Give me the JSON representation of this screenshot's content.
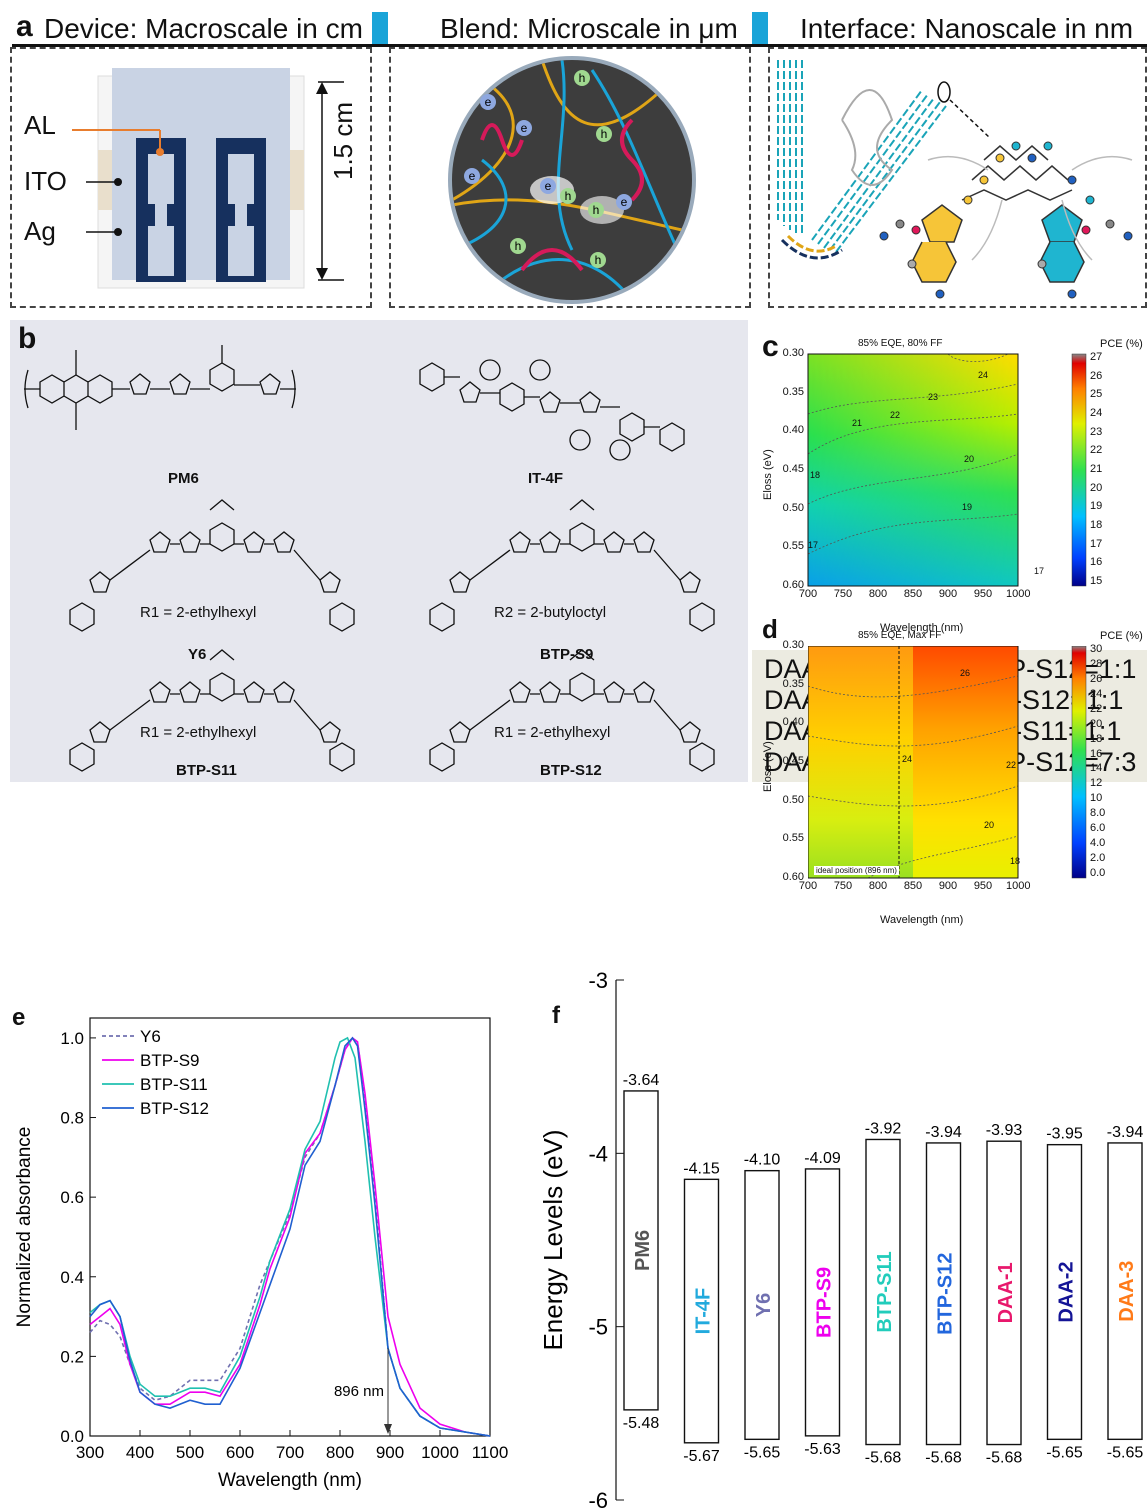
{
  "panel_a": {
    "letter": "a",
    "headers": [
      "Device: Macroscale in cm",
      "Blend: Microscale in μm",
      "Interface: Nanoscale in nm"
    ],
    "device_labels": {
      "al": "AL",
      "ito": "ITO",
      "ag": "Ag",
      "size": "1.5 cm"
    },
    "carrier_labels": {
      "electron": "e",
      "hole": "h"
    }
  },
  "panel_b": {
    "letter": "b",
    "molecules": [
      {
        "name": "PM6"
      },
      {
        "name": "IT-4F"
      },
      {
        "name": "Y6",
        "substituent": "R1 = 2-ethylhexyl"
      },
      {
        "name": "BTP-S9",
        "substituent": "R2 = 2-butyloctyl"
      },
      {
        "name": "BTP-S11",
        "substituent": "R1 = 2-ethylhexyl"
      },
      {
        "name": "BTP-S12",
        "substituent": "R1 = 2-ethylhexyl"
      }
    ]
  },
  "panel_c": {
    "letter": "c",
    "top": {
      "title": "85% EQE, 80% FF",
      "colorbar_title": "PCE (%)",
      "colorbar_ticks": [
        "27",
        "26",
        "25",
        "24",
        "23",
        "22",
        "21",
        "20",
        "19",
        "18",
        "17",
        "16",
        "15"
      ],
      "contour_labels": [
        "24",
        "23",
        "22",
        "21",
        "20",
        "19",
        "18",
        "17",
        "17"
      ]
    },
    "bottom": {
      "title": "85% EQE, Max FF",
      "colorbar_title": "PCE (%)",
      "colorbar_ticks": [
        "30",
        "28",
        "26",
        "24",
        "22",
        "20",
        "18",
        "16",
        "14",
        "12",
        "10",
        "8.0",
        "6.0",
        "4.0",
        "2.0",
        "0.0"
      ],
      "contour_labels": [
        "26",
        "24",
        "22",
        "20",
        "18"
      ],
      "annotation": "ideal position (896 nm)"
    },
    "xlabel": "Wavelength (nm)",
    "ylabel": "Eloss (eV)",
    "xticks": [
      "700",
      "750",
      "800",
      "850",
      "900",
      "950",
      "1000"
    ],
    "yticks": [
      "0.30",
      "0.35",
      "0.40",
      "0.45",
      "0.50",
      "0.55",
      "0.60"
    ]
  },
  "panel_d": {
    "letter": "d",
    "items": [
      "DAA-1: BTP-S11:BTP-S12=1:1",
      "DAA-2: BTP-S9:BTP-S12=1:1",
      "DAA-3: BTP-S9:BTP-S11=1:1",
      "DAA-4: BTP-S11:BTP-S12=7:3"
    ]
  },
  "chart_data": [
    {
      "type": "line",
      "panel": "e",
      "xlabel": "Wavelength (nm)",
      "ylabel": "Normalized absorbance",
      "xlim": [
        300,
        1100
      ],
      "ylim": [
        0,
        1.05
      ],
      "xticks": [
        "300",
        "400",
        "500",
        "600",
        "700",
        "800",
        "900",
        "1000",
        "1100"
      ],
      "yticks": [
        "0.0",
        "0.2",
        "0.4",
        "0.6",
        "0.8",
        "1.0"
      ],
      "annotation": "896 nm",
      "series": [
        {
          "name": "Y6",
          "color": "#7070b0",
          "dashed": true,
          "x": [
            300,
            320,
            340,
            360,
            380,
            400,
            430,
            460,
            500,
            530,
            560,
            600,
            640,
            660,
            700,
            730,
            760,
            790,
            810,
            825,
            835,
            850,
            870,
            896,
            920,
            960,
            1000,
            1050,
            1100
          ],
          "y": [
            0.26,
            0.29,
            0.28,
            0.25,
            0.18,
            0.12,
            0.09,
            0.1,
            0.14,
            0.14,
            0.14,
            0.22,
            0.38,
            0.44,
            0.56,
            0.7,
            0.76,
            0.88,
            0.97,
            1.0,
            0.99,
            0.85,
            0.6,
            0.22,
            0.12,
            0.05,
            0.02,
            0.01,
            0.0
          ]
        },
        {
          "name": "BTP-S9",
          "color": "#ee00ee",
          "dashed": false,
          "x": [
            300,
            320,
            340,
            360,
            380,
            400,
            430,
            460,
            500,
            530,
            560,
            600,
            640,
            660,
            700,
            730,
            760,
            790,
            810,
            825,
            835,
            850,
            870,
            896,
            920,
            960,
            1000,
            1050,
            1100
          ],
          "y": [
            0.28,
            0.3,
            0.32,
            0.28,
            0.18,
            0.11,
            0.08,
            0.08,
            0.11,
            0.11,
            0.1,
            0.18,
            0.33,
            0.42,
            0.55,
            0.71,
            0.76,
            0.88,
            0.97,
            1.0,
            0.99,
            0.86,
            0.63,
            0.3,
            0.18,
            0.07,
            0.03,
            0.01,
            0.0
          ]
        },
        {
          "name": "BTP-S11",
          "color": "#20c0b0",
          "dashed": false,
          "x": [
            300,
            320,
            340,
            360,
            380,
            400,
            430,
            460,
            500,
            530,
            560,
            600,
            640,
            660,
            700,
            730,
            760,
            790,
            800,
            815,
            830,
            850,
            870,
            896,
            920,
            960,
            1000,
            1050,
            1100
          ],
          "y": [
            0.31,
            0.33,
            0.34,
            0.3,
            0.2,
            0.13,
            0.1,
            0.1,
            0.12,
            0.12,
            0.11,
            0.2,
            0.35,
            0.44,
            0.57,
            0.72,
            0.79,
            0.95,
            0.99,
            1.0,
            0.95,
            0.74,
            0.5,
            0.22,
            0.12,
            0.05,
            0.02,
            0.01,
            0.0
          ]
        },
        {
          "name": "BTP-S12",
          "color": "#2060d0",
          "dashed": false,
          "x": [
            300,
            320,
            340,
            360,
            380,
            400,
            430,
            460,
            500,
            530,
            560,
            600,
            640,
            660,
            700,
            730,
            760,
            790,
            810,
            825,
            835,
            850,
            870,
            896,
            920,
            960,
            1000,
            1050,
            1100
          ],
          "y": [
            0.3,
            0.33,
            0.34,
            0.3,
            0.19,
            0.11,
            0.08,
            0.07,
            0.09,
            0.08,
            0.08,
            0.17,
            0.31,
            0.38,
            0.52,
            0.68,
            0.74,
            0.88,
            0.98,
            1.0,
            0.98,
            0.82,
            0.58,
            0.22,
            0.12,
            0.05,
            0.02,
            0.01,
            0.0
          ]
        }
      ]
    },
    {
      "type": "bar",
      "panel": "f",
      "ylabel": "Energy Levels (eV)",
      "ylim": [
        -6,
        -3
      ],
      "yticks": [
        "-3",
        "-4",
        "-5",
        "-6"
      ],
      "categories": [
        "PM6",
        "IT-4F",
        "Y6",
        "BTP-S9",
        "BTP-S11",
        "BTP-S12",
        "DAA-1",
        "DAA-2",
        "DAA-3"
      ],
      "lumo": [
        -3.64,
        -4.15,
        -4.1,
        -4.09,
        -3.92,
        -3.94,
        -3.93,
        -3.95,
        -3.94
      ],
      "homo": [
        -5.48,
        -5.67,
        -5.65,
        -5.63,
        -5.68,
        -5.68,
        -5.68,
        -5.65,
        -5.65
      ],
      "lumo_labels": [
        "-3.64",
        "-4.15",
        "-4.10",
        "-4.09",
        "-3.92",
        "-3.94",
        "-3.93",
        "-3.95",
        "-3.94"
      ],
      "homo_labels": [
        "-5.48",
        "-5.67",
        "-5.65",
        "-5.63",
        "-5.68",
        "-5.68",
        "-5.68",
        "-5.65",
        "-5.65"
      ],
      "colors": [
        "#555555",
        "#22aadd",
        "#7070b0",
        "#ee00ee",
        "#22ccbb",
        "#2266dd",
        "#e8186c",
        "#141496",
        "#ff7a18"
      ]
    }
  ]
}
